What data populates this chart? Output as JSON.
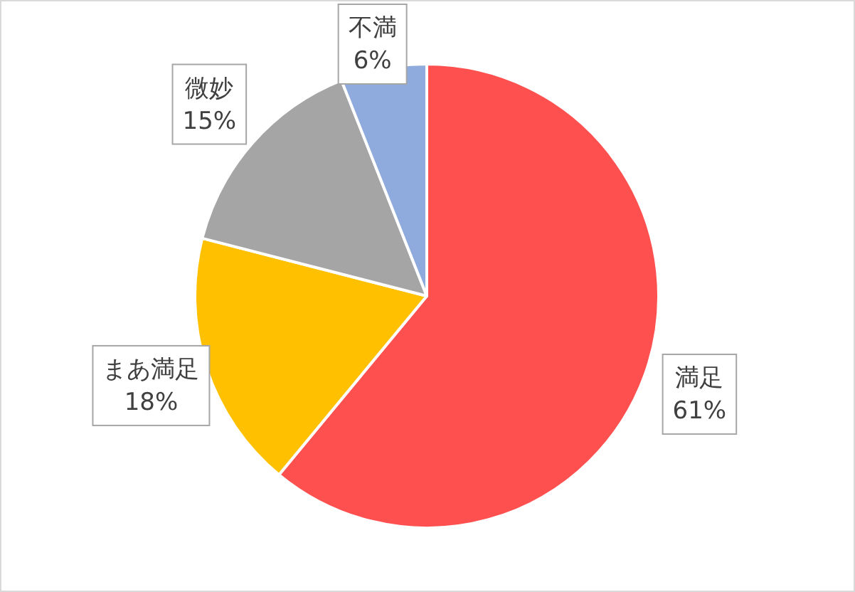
{
  "chart_data": {
    "type": "pie",
    "categories": [
      "満足",
      "まあ満足",
      "微妙",
      "不満"
    ],
    "values": [
      61,
      18,
      15,
      6
    ],
    "value_labels": [
      "61%",
      "18%",
      "15%",
      "6%"
    ],
    "colors": [
      "#ff5050",
      "#ffc000",
      "#a5a5a5",
      "#8faadc"
    ]
  }
}
